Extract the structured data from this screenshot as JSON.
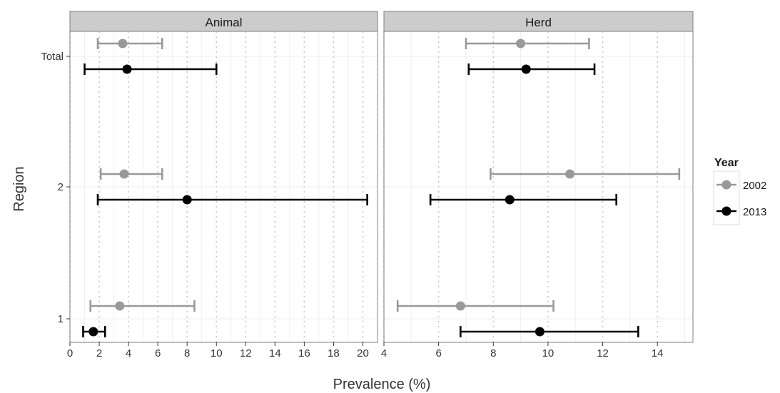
{
  "chart_data": {
    "type": "errorbar-point",
    "xlabel": "Prevalence (%)",
    "ylabel": "Region",
    "y_categories": [
      "1",
      "2",
      "Total"
    ],
    "legend": {
      "title": "Year",
      "position": "right",
      "entries": [
        {
          "label": "2002",
          "color": "#999999"
        },
        {
          "label": "2013",
          "color": "#000000"
        }
      ]
    },
    "grid": true,
    "panels": [
      {
        "title": "Animal",
        "xlim": [
          0,
          21
        ],
        "x_ticks": [
          0,
          2,
          4,
          6,
          8,
          10,
          12,
          14,
          16,
          18,
          20
        ],
        "series": [
          {
            "name": "2002",
            "points": [
              {
                "region": "Total",
                "estimate": 3.6,
                "lower": 1.9,
                "upper": 6.3
              },
              {
                "region": "2",
                "estimate": 3.7,
                "lower": 2.1,
                "upper": 6.3
              },
              {
                "region": "1",
                "estimate": 3.4,
                "lower": 1.4,
                "upper": 8.5
              }
            ]
          },
          {
            "name": "2013",
            "points": [
              {
                "region": "Total",
                "estimate": 3.9,
                "lower": 1.0,
                "upper": 10.0
              },
              {
                "region": "2",
                "estimate": 8.0,
                "lower": 1.9,
                "upper": 20.3
              },
              {
                "region": "1",
                "estimate": 1.6,
                "lower": 0.9,
                "upper": 2.4
              }
            ]
          }
        ]
      },
      {
        "title": "Herd",
        "xlim": [
          4,
          15.3
        ],
        "x_ticks": [
          4,
          6,
          8,
          10,
          12,
          14
        ],
        "series": [
          {
            "name": "2002",
            "points": [
              {
                "region": "Total",
                "estimate": 9.0,
                "lower": 7.0,
                "upper": 11.5
              },
              {
                "region": "2",
                "estimate": 10.8,
                "lower": 7.9,
                "upper": 14.8
              },
              {
                "region": "1",
                "estimate": 6.8,
                "lower": 4.5,
                "upper": 10.2
              }
            ]
          },
          {
            "name": "2013",
            "points": [
              {
                "region": "Total",
                "estimate": 9.2,
                "lower": 7.1,
                "upper": 11.7
              },
              {
                "region": "2",
                "estimate": 8.6,
                "lower": 5.7,
                "upper": 12.5
              },
              {
                "region": "1",
                "estimate": 9.7,
                "lower": 6.8,
                "upper": 13.3
              }
            ]
          }
        ]
      }
    ]
  }
}
